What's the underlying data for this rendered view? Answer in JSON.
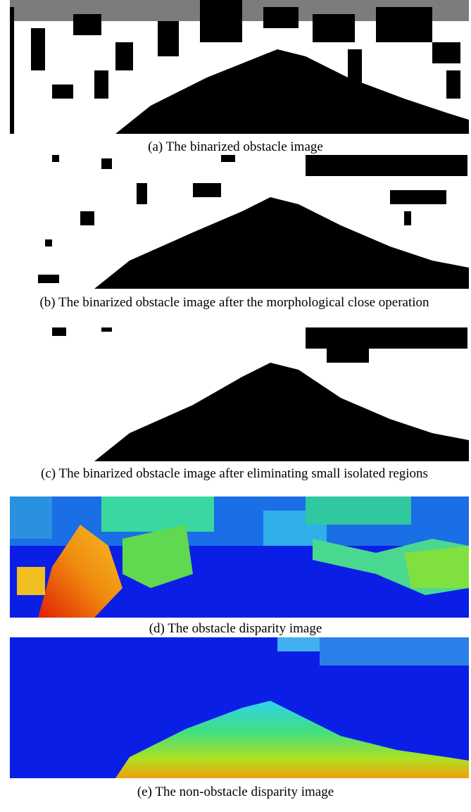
{
  "figure": {
    "panels": [
      {
        "caption": "(a) The binarized obstacle image"
      },
      {
        "caption": "(b) The binarized obstacle image after the morphological close operation"
      },
      {
        "caption": "(c) The binarized obstacle image after eliminating small isolated regions"
      },
      {
        "caption": "(d) The obstacle disparity image"
      },
      {
        "caption": "(e) The non-obstacle disparity image"
      }
    ]
  }
}
